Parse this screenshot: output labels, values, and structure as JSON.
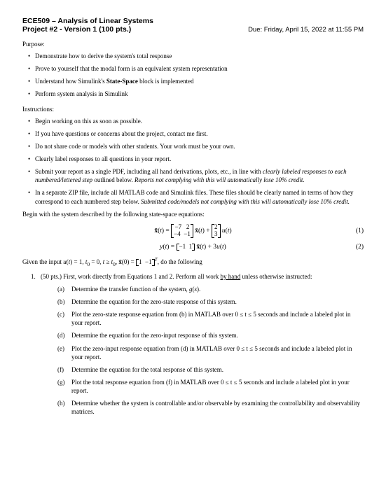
{
  "header": {
    "course": "ECE509 – Analysis of Linear Systems",
    "project": "Project #2 - Version 1 (100 pts.)",
    "due": "Due: Friday, April 15, 2022 at 11:55 PM"
  },
  "purpose": {
    "title": "Purpose:",
    "items": [
      "Demonstrate how to derive the system's total response",
      "Prove to yourself that the modal form is an equivalent system representation",
      "Understand how Simulink's State-Space block is implemented",
      "Perform system analysis in Simulink"
    ]
  },
  "instructions": {
    "title": "Instructions:",
    "items": [
      "Begin working on this as soon as possible.",
      "If you have questions or concerns about the project, contact me first.",
      "Do not share code or models with other students. Your work must be your own.",
      "Clearly label responses to all questions in your report.",
      "Submit your report as a single PDF, including all hand derivations, plots, etc., in line with clearly labeled responses to each numbered/lettered step outlined below. Reports not complying with this will automatically lose 10% credit.",
      "In a separate ZIP file, include all MATLAB code and Simulink files. These files should be clearly named in terms of how they correspond to each numbered step below. Submitted code/models not complying with this will automatically lose 10% credit."
    ]
  },
  "equations": {
    "intro": "Begin with the system described by the following state-space equations:",
    "eq1_num": "(1)",
    "eq2_num": "(2)"
  },
  "given": {
    "text_prefix": "Given the input ",
    "text_suffix": ", do the following"
  },
  "question1": {
    "num": "1.",
    "prompt_prefix": "(50 pts.) First, work directly from Equations 1 and 2. Perform all work ",
    "prompt_underline": "by hand",
    "prompt_suffix": " unless otherwise instructed:",
    "subs": [
      {
        "label": "(a)",
        "text": "Determine the transfer function of the system, g(s)."
      },
      {
        "label": "(b)",
        "text": "Determine the equation for the zero-state response of this system."
      },
      {
        "label": "(c)",
        "text": "Plot the zero-state response equation from (b) in MATLAB over 0 ≤ t ≤ 5 seconds and include a labeled plot in your report."
      },
      {
        "label": "(d)",
        "text": "Determine the equation for the zero-input response of this system."
      },
      {
        "label": "(e)",
        "text": "Plot the zero-input response equation from (d) in MATLAB over 0 ≤ t ≤ 5 seconds and include a labeled plot in your report."
      },
      {
        "label": "(f)",
        "text": "Determine the equation for the total response of this system."
      },
      {
        "label": "(g)",
        "text": "Plot the total response equation from (f) in MATLAB over 0 ≤ t ≤ 5 seconds and include a labeled plot in your report."
      },
      {
        "label": "(h)",
        "text": "Determine whether the system is controllable and/or observable by examining the controllability and observability matrices."
      }
    ]
  }
}
